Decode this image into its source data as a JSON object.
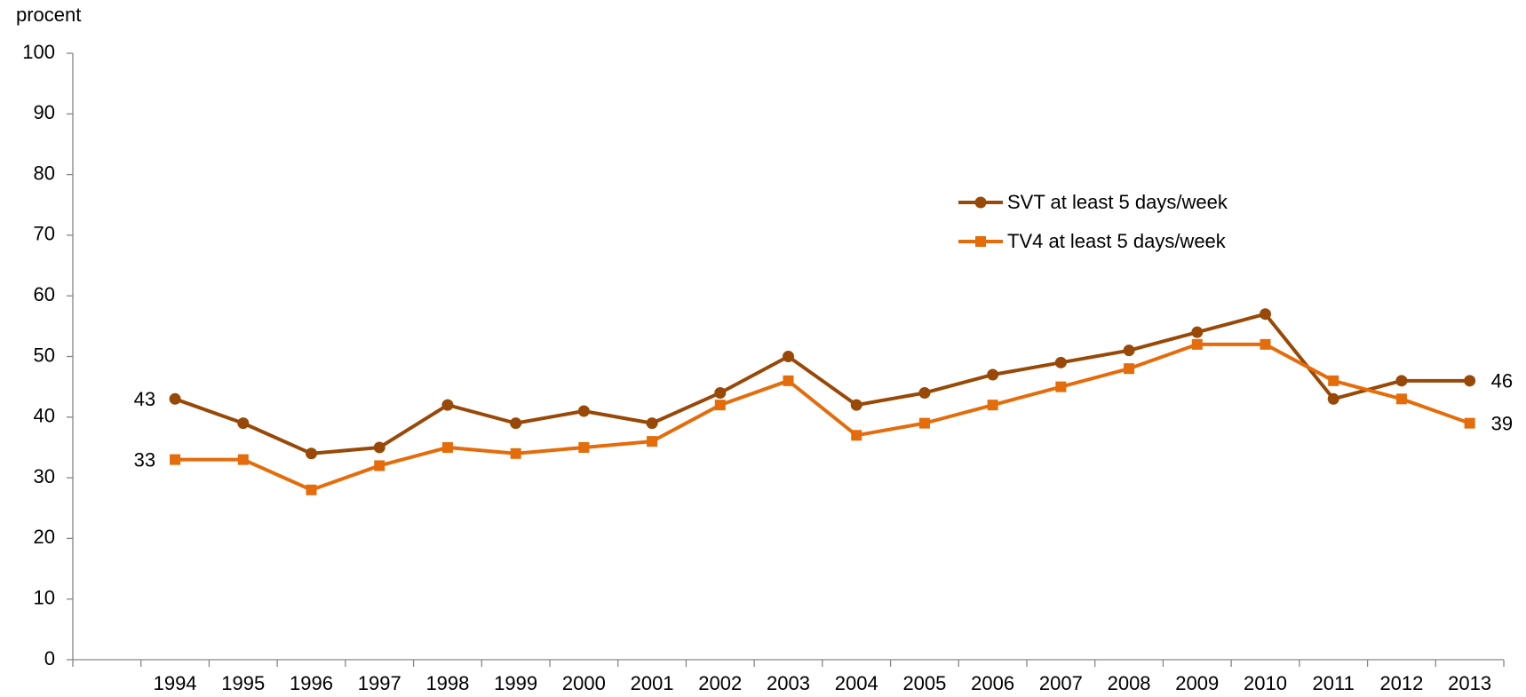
{
  "chart_data": {
    "type": "line",
    "y_label": "procent",
    "categories": [
      null,
      "1994",
      "1995",
      "1996",
      "1997",
      "1998",
      "1999",
      "2000",
      "2001",
      "2002",
      "2003",
      "2004",
      "2005",
      "2006",
      "2007",
      "2008",
      "2009",
      "2010",
      "2011",
      "2012",
      "2013"
    ],
    "series": [
      {
        "name": "SVT at least 5 days/week",
        "color": "#984807",
        "marker": "circle",
        "values": [
          null,
          43,
          39,
          34,
          35,
          42,
          39,
          41,
          39,
          44,
          50,
          42,
          44,
          47,
          49,
          51,
          54,
          57,
          43,
          46,
          46
        ]
      },
      {
        "name": "TV4 at least 5 days/week",
        "color": "#e46c0a",
        "marker": "square",
        "values": [
          null,
          33,
          33,
          28,
          32,
          35,
          34,
          35,
          36,
          42,
          46,
          37,
          39,
          42,
          45,
          48,
          52,
          52,
          46,
          43,
          39
        ]
      }
    ],
    "data_labels": "ends",
    "ylim": [
      0,
      100
    ],
    "yticks": [
      0,
      10,
      20,
      30,
      40,
      50,
      60,
      70,
      80,
      90,
      100
    ],
    "grid": false
  }
}
